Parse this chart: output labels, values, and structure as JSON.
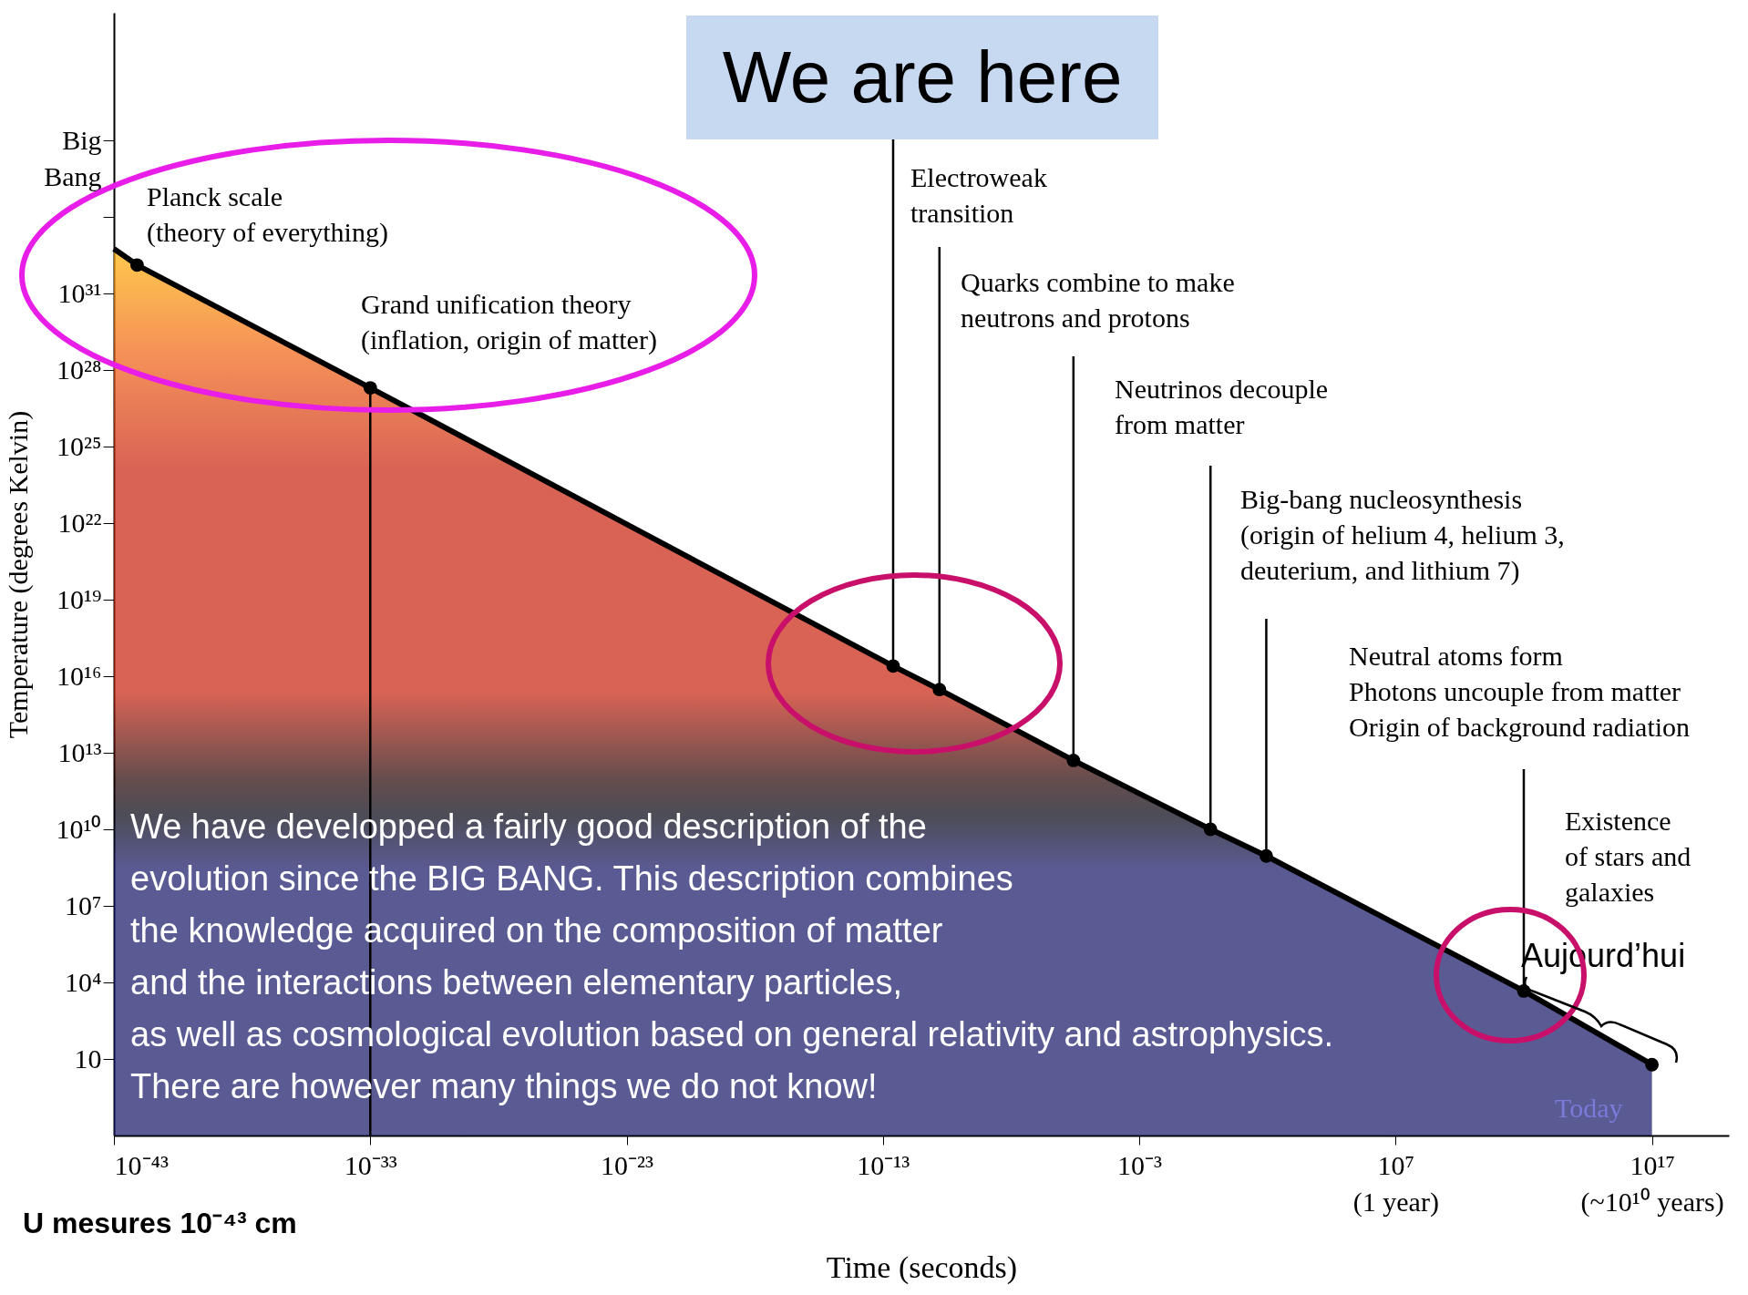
{
  "chart_data": {
    "type": "area",
    "xlabel": "Time (seconds)",
    "ylabel": "Temperature (degrees Kelvin)",
    "log": "xy",
    "grid": false,
    "xlim": [
      1e-43,
      1e+20
    ],
    "xticks": [
      {
        "value": 1e-43,
        "label": "10⁻⁴³"
      },
      {
        "value": 1e-33,
        "label": "10⁻³³"
      },
      {
        "value": 1e-23,
        "label": "10⁻²³"
      },
      {
        "value": 1e-13,
        "label": "10⁻¹³"
      },
      {
        "value": 0.001,
        "label": "10⁻³"
      },
      {
        "value": 10000000.0,
        "label": "10⁷\n(1 year)"
      },
      {
        "value": 1e+17,
        "label": "10¹⁷\n(~10¹⁰ years)"
      }
    ],
    "ylim": [
      0.01,
      1e+42
    ],
    "yticks": [
      10,
      {
        "value": 10000.0,
        "label": "10⁴"
      },
      {
        "value": 10000000.0,
        "label": "10⁷"
      },
      {
        "value": 10000000000.0,
        "label": "10¹⁰"
      },
      {
        "value": 10000000000000.0,
        "label": "10¹³"
      },
      {
        "value": 1e+16,
        "label": "10¹⁶"
      },
      {
        "value": 1e+19,
        "label": "10¹⁹"
      },
      {
        "value": 1e+22,
        "label": "10²²"
      },
      {
        "value": 1e+25,
        "label": "10²⁵"
      },
      {
        "value": 1e+28,
        "label": "10²⁸"
      },
      {
        "value": 1e+31,
        "label": "10³¹"
      },
      {
        "value": 1e+34,
        "label": null
      },
      {
        "value": 1e+37,
        "label": "Big\nBang"
      }
    ],
    "series": [
      {
        "color": "#c8200c",
        "x": [
          1e-43,
          8e-43,
          1e-33,
          2.5e-13,
          1.6e-11,
          2.7e-06,
          0.6,
          90,
          1000000000000.0,
          1e+17
        ],
        "values": [
          5.6e+32,
          1.3e+32,
          2e+27,
          2.5e+16,
          3000000000000000.0,
          5000000000000.0,
          10000000000.0,
          900000000.0,
          4600.0,
          6
        ]
      },
      {
        "type": "scatter",
        "color": "#000000",
        "marker": "circle",
        "x": [
          8e-43,
          1e-33,
          2.5e-13,
          1.6e-11,
          2.7e-06,
          0.6,
          90,
          1000000000000.0,
          1e+17
        ],
        "values": [
          1.3e+32,
          2e+27,
          2.5e+16,
          3000000000000000.0,
          5000000000000.0,
          10000000000.0,
          900000000.0,
          4600.0,
          6
        ]
      }
    ],
    "annotations": [
      {
        "text": "Planck scale\n(theory of everything)",
        "x": 8e-43,
        "y": 1.3e+32
      },
      {
        "text": "Grand unification theory\n(inflation, origin of matter)",
        "x": 1e-33,
        "y": 2e+27
      },
      {
        "text": "We are here",
        "x": 2.5e-13,
        "y": 2.5e+16
      },
      {
        "text": "Electroweak\ntransition",
        "x": 1.6e-11,
        "y": 3000000000000000.0
      },
      {
        "text": "Quarks combine to make\nneutrons and protons",
        "x": 2.7e-06,
        "y": 5000000000000.0
      },
      {
        "text": "Neutrinos decouple\nfrom matter",
        "x": 0.6,
        "y": 10000000000.0
      },
      {
        "text": "Big-bang nucleosynthesis\n(origin of helium 4, helium 3,\ndeuterium, and lithium 7)",
        "x": 90,
        "y": 900000000.0
      },
      {
        "text": "Neutral atoms form\nPhotons uncouple from matter\nOrigin of background radiation",
        "x": 1000000000000.0,
        "y": 4600.0
      },
      "Existence\nof stars and\ngalaxies",
      "Aujourd’hui",
      "Today",
      "We have developped a fairly good description of the\nevolution since the BIG BANG. This description combines\nthe knowledge acquired on the composition of matter\nand the interactions  between elementary particles,\nas well as cosmological evolution based on  general relativity and astrophysics.\nThere are however many things we do not know!",
      "U mesures 10⁻⁴³ cm"
    ]
  }
}
